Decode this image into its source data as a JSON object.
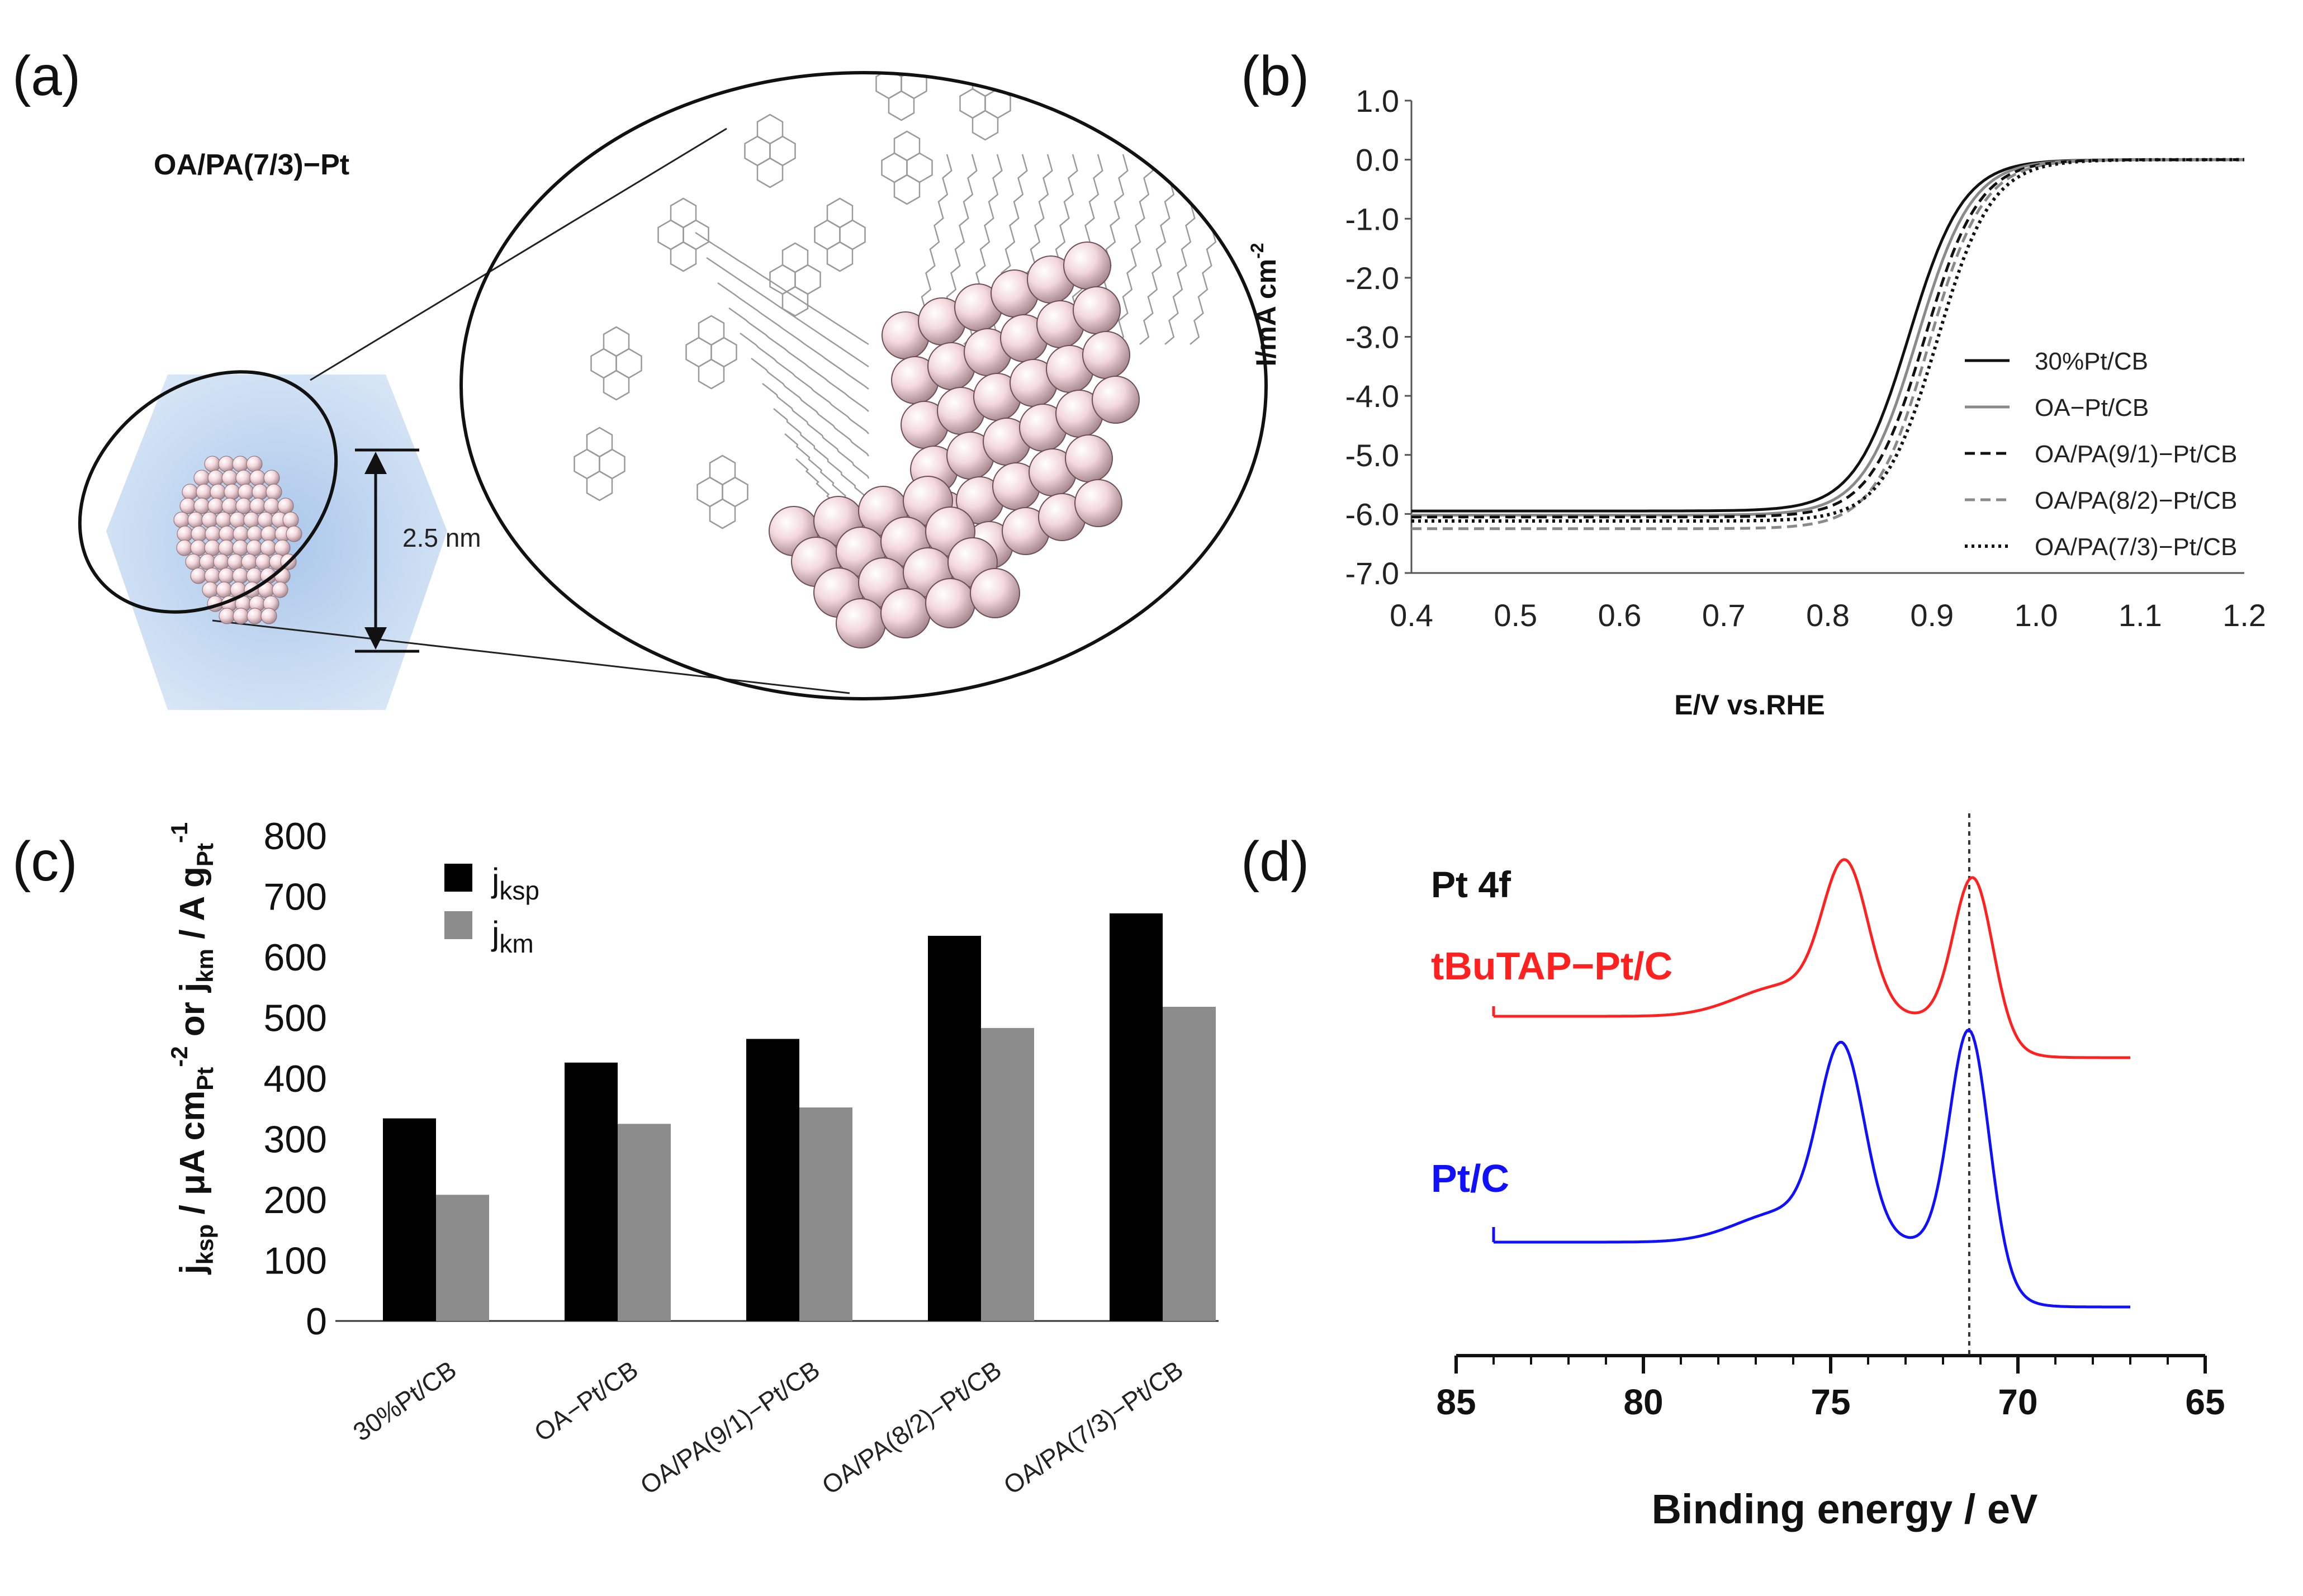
{
  "panels": {
    "a": {
      "label": "(a)",
      "title": "OA/PA(7/3)−Pt",
      "size_label": "2.5 nm"
    },
    "b": {
      "label": "(b)"
    },
    "c": {
      "label": "(c)"
    },
    "d": {
      "label": "(d)"
    }
  },
  "colors": {
    "black": "#000000",
    "gray": "#8c8c8c",
    "red": "#ff2020",
    "blue": "#1010ff",
    "particle": "#f1d2d8",
    "hexbg": "#bcd4ee"
  },
  "chart_data": [
    {
      "id": "b",
      "type": "line",
      "xlabel": "E/V vs.RHE",
      "ylabel": "I/mA cm",
      "ylabel_sup": "-2",
      "xlim": [
        0.4,
        1.2
      ],
      "ylim": [
        -7.0,
        1.0
      ],
      "xticks": [
        0.4,
        0.5,
        0.6,
        0.7,
        0.8,
        0.9,
        1.0,
        1.1,
        1.2
      ],
      "xtick_labels": [
        "0.4",
        "0.5",
        "0.6",
        "0.7",
        "0.8",
        "0.9",
        "1.0",
        "1.1",
        "1.2"
      ],
      "yticks": [
        1.0,
        0.0,
        -1.0,
        -2.0,
        -3.0,
        -4.0,
        -5.0,
        -6.0,
        -7.0
      ],
      "ytick_labels": [
        "1.0",
        "0.0",
        "-1.0",
        "-2.0",
        "-3.0",
        "-4.0",
        "-5.0",
        "-6.0",
        "-7.0"
      ],
      "series": [
        {
          "name": "30%Pt/CB",
          "style": "solid-black",
          "plateau": -5.95,
          "e_half": 0.878,
          "width": 0.026
        },
        {
          "name": "OA−Pt/CB",
          "style": "solid-gray",
          "plateau": -6.02,
          "e_half": 0.886,
          "width": 0.026
        },
        {
          "name": "OA/PA(9/1)−Pt/CB",
          "style": "dash-black",
          "plateau": -6.05,
          "e_half": 0.893,
          "width": 0.026
        },
        {
          "name": "OA/PA(8/2)−Pt/CB",
          "style": "dash-gray",
          "plateau": -6.25,
          "e_half": 0.897,
          "width": 0.026
        },
        {
          "name": "OA/PA(7/3)−Pt/CB",
          "style": "dot-black",
          "plateau": -6.12,
          "e_half": 0.905,
          "width": 0.026
        }
      ]
    },
    {
      "id": "c",
      "type": "bar",
      "ylabel": "j_ksp / μA cm_Pt^-2 or j_km / A g_Pt^-1",
      "ylabel_parts": [
        "j",
        "ksp",
        " / μA cm",
        "Pt",
        "-2",
        " or j",
        "km",
        " / A g",
        "Pt",
        "-1"
      ],
      "ylim": [
        0,
        800
      ],
      "yticks": [
        0,
        100,
        200,
        300,
        400,
        500,
        600,
        700,
        800
      ],
      "ytick_labels": [
        "0",
        "100",
        "200",
        "300",
        "400",
        "500",
        "600",
        "700",
        "800"
      ],
      "categories": [
        "30%Pt/CB",
        "OA−Pt/CB",
        "OA/PA(9/1)−Pt/CB",
        "OA/PA(8/2)−Pt/CB",
        "OA/PA(7/3)−Pt/CB"
      ],
      "series": [
        {
          "name": "j",
          "name_sub": "ksp",
          "color": "#000000",
          "values": [
            334,
            426,
            465,
            635,
            672
          ]
        },
        {
          "name": "j",
          "name_sub": "km",
          "color": "#8c8c8c",
          "values": [
            208,
            325,
            352,
            483,
            518
          ]
        }
      ]
    },
    {
      "id": "d",
      "type": "line",
      "xlabel": "Binding energy / eV",
      "title": "Pt 4f",
      "xlim": [
        85,
        65
      ],
      "xticks": [
        85,
        80,
        75,
        70,
        65
      ],
      "xtick_labels": [
        "85",
        "80",
        "75",
        "70",
        "65"
      ],
      "reference_line": 71.3,
      "series": [
        {
          "name": "tBuTAP−Pt/C",
          "color": "#ff2020",
          "peaks": [
            74.6,
            71.2
          ]
        },
        {
          "name": "Pt/C",
          "color": "#1010ff",
          "peaks": [
            74.7,
            71.3
          ]
        }
      ]
    }
  ]
}
